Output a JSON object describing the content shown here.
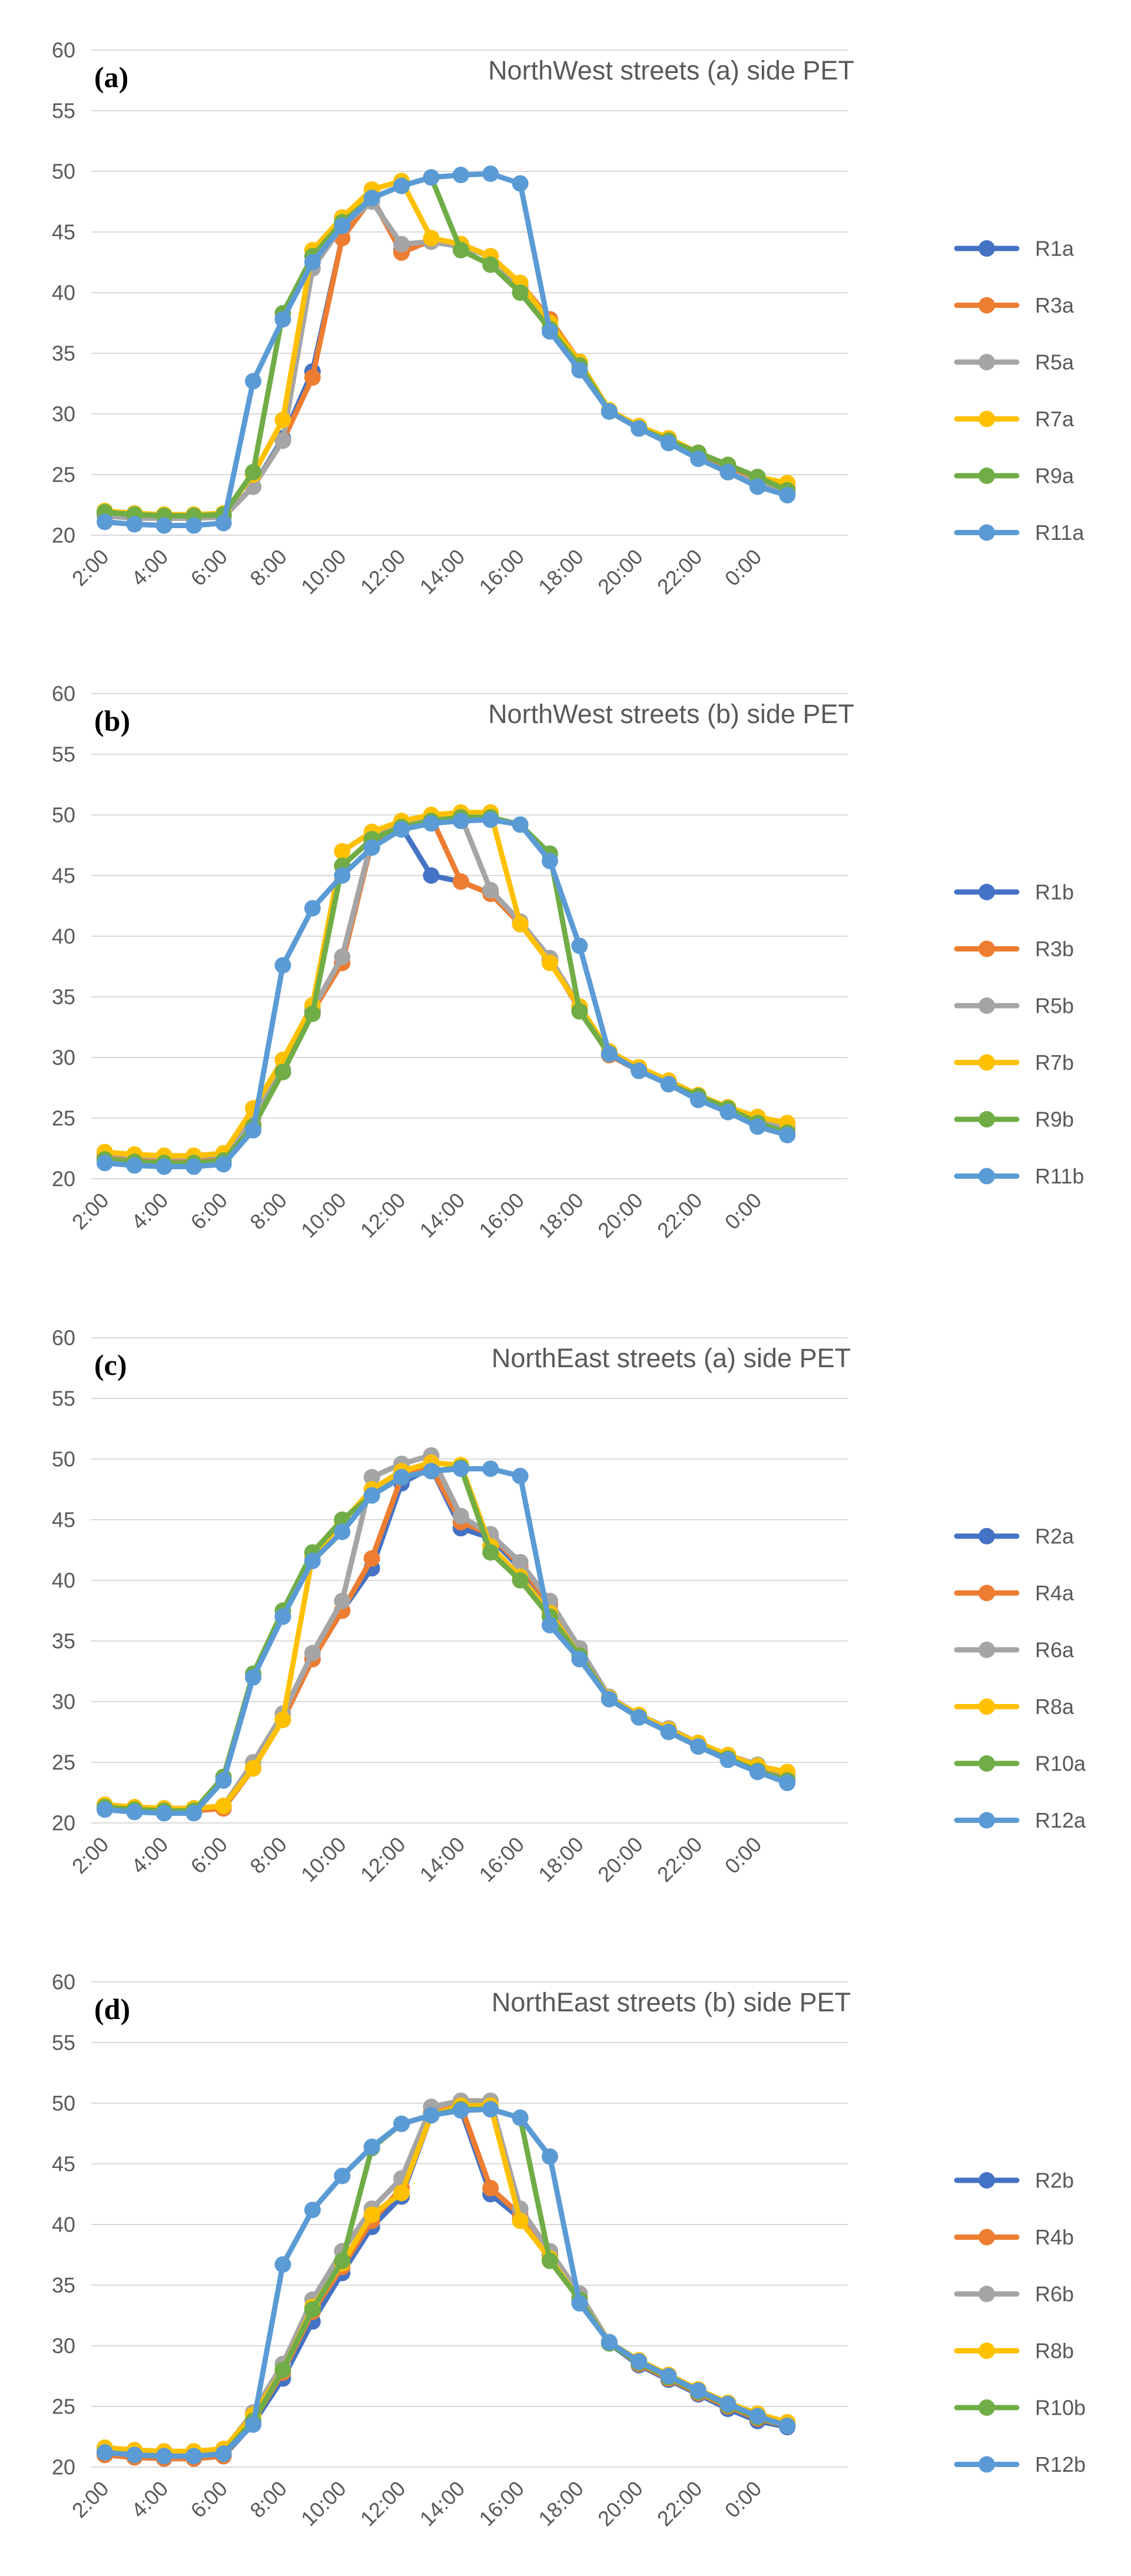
{
  "colors": {
    "text": "#595959",
    "gridline": "#D9D9D9",
    "series": [
      "#4472C4",
      "#ED7D31",
      "#A5A5A5",
      "#FFC000",
      "#70AD47",
      "#5B9BD5"
    ]
  },
  "chart_data": [
    {
      "type": "line",
      "panel_label": "(a)",
      "title": "NorthWest streets (a) side PET",
      "xlabel": "",
      "ylabel": "",
      "ylim": [
        20,
        60
      ],
      "yticks": [
        "20",
        "25",
        "30",
        "35",
        "40",
        "45",
        "50",
        "55",
        "60"
      ],
      "grid": true,
      "legend_position": "right",
      "categories": [
        "2:00",
        "3:00",
        "4:00",
        "5:00",
        "6:00",
        "7:00",
        "8:00",
        "9:00",
        "10:00",
        "11:00",
        "12:00",
        "13:00",
        "14:00",
        "15:00",
        "16:00",
        "17:00",
        "18:00",
        "19:00",
        "20:00",
        "21:00",
        "22:00",
        "23:00",
        "0:00",
        "1:00"
      ],
      "xtick_labels": [
        "2:00",
        "4:00",
        "6:00",
        "8:00",
        "10:00",
        "12:00",
        "14:00",
        "16:00",
        "18:00",
        "20:00",
        "22:00",
        "0:00"
      ],
      "series": [
        {
          "name": "R1a",
          "values": [
            21.8,
            21.6,
            21.5,
            21.5,
            21.6,
            24.0,
            28.0,
            33.5,
            44.5,
            47.8,
            43.5,
            44.2,
            43.8,
            43.0,
            40.5,
            37.8,
            34.2,
            30.2,
            28.8,
            27.8,
            26.6,
            25.5,
            24.5,
            23.8
          ]
        },
        {
          "name": "R3a",
          "values": [
            21.7,
            21.5,
            21.4,
            21.4,
            21.5,
            24.0,
            27.8,
            33.0,
            44.5,
            47.8,
            43.3,
            44.3,
            44.0,
            43.0,
            40.8,
            37.8,
            34.3,
            30.3,
            28.9,
            27.9,
            26.7,
            25.6,
            24.6,
            23.9
          ]
        },
        {
          "name": "R5a",
          "values": [
            21.6,
            21.4,
            21.4,
            21.4,
            21.5,
            24.0,
            27.8,
            42.0,
            45.5,
            47.5,
            44.0,
            44.2,
            43.8,
            43.0,
            40.5,
            37.5,
            34.2,
            30.2,
            28.8,
            27.7,
            26.3,
            25.2,
            24.3,
            23.4
          ]
        },
        {
          "name": "R7a",
          "values": [
            22.0,
            21.8,
            21.7,
            21.7,
            21.8,
            25.0,
            29.5,
            43.5,
            46.2,
            48.5,
            49.2,
            44.5,
            44.0,
            43.0,
            40.8,
            37.5,
            34.3,
            30.3,
            29.0,
            28.0,
            26.8,
            25.8,
            24.8,
            24.3
          ]
        },
        {
          "name": "R9a",
          "values": [
            21.9,
            21.7,
            21.6,
            21.6,
            21.7,
            25.2,
            38.3,
            43.0,
            45.8,
            47.8,
            48.8,
            49.5,
            43.5,
            42.3,
            40.0,
            37.0,
            34.0,
            30.2,
            28.8,
            27.8,
            26.8,
            25.8,
            24.8,
            23.7
          ]
        },
        {
          "name": "R11a",
          "values": [
            21.1,
            20.9,
            20.8,
            20.8,
            21.0,
            32.7,
            37.8,
            42.5,
            45.5,
            47.8,
            48.8,
            49.5,
            49.7,
            49.8,
            49.0,
            36.8,
            33.6,
            30.2,
            28.8,
            27.6,
            26.3,
            25.2,
            24.0,
            23.3
          ]
        }
      ]
    },
    {
      "type": "line",
      "panel_label": "(b)",
      "title": "NorthWest streets (b) side PET",
      "xlabel": "",
      "ylabel": "",
      "ylim": [
        20,
        60
      ],
      "yticks": [
        "20",
        "25",
        "30",
        "35",
        "40",
        "45",
        "50",
        "55",
        "60"
      ],
      "grid": true,
      "legend_position": "right",
      "categories": [
        "2:00",
        "3:00",
        "4:00",
        "5:00",
        "6:00",
        "7:00",
        "8:00",
        "9:00",
        "10:00",
        "11:00",
        "12:00",
        "13:00",
        "14:00",
        "15:00",
        "16:00",
        "17:00",
        "18:00",
        "19:00",
        "20:00",
        "21:00",
        "22:00",
        "23:00",
        "0:00",
        "1:00"
      ],
      "xtick_labels": [
        "2:00",
        "4:00",
        "6:00",
        "8:00",
        "10:00",
        "12:00",
        "14:00",
        "16:00",
        "18:00",
        "20:00",
        "22:00",
        "0:00"
      ],
      "series": [
        {
          "name": "R1b",
          "values": [
            21.9,
            21.7,
            21.6,
            21.6,
            21.8,
            24.5,
            28.8,
            33.8,
            37.8,
            47.8,
            49.0,
            45.0,
            44.5,
            43.5,
            41.0,
            38.0,
            34.0,
            30.2,
            28.9,
            27.8,
            26.6,
            25.6,
            24.8,
            24.2
          ]
        },
        {
          "name": "R3b",
          "values": [
            21.8,
            21.6,
            21.5,
            21.5,
            21.7,
            24.5,
            28.8,
            33.8,
            37.8,
            47.8,
            49.2,
            49.8,
            44.5,
            43.5,
            41.0,
            38.0,
            34.0,
            30.2,
            28.9,
            27.8,
            26.6,
            25.6,
            24.8,
            24.2
          ]
        },
        {
          "name": "R5b",
          "values": [
            22.1,
            21.9,
            21.8,
            21.8,
            22.0,
            25.0,
            29.0,
            34.0,
            38.3,
            48.0,
            49.3,
            49.9,
            49.9,
            43.8,
            41.2,
            38.2,
            34.2,
            30.3,
            29.0,
            27.9,
            26.7,
            25.7,
            24.9,
            24.3
          ]
        },
        {
          "name": "R7b",
          "values": [
            22.2,
            22.0,
            21.9,
            21.9,
            22.1,
            25.8,
            29.8,
            34.3,
            47.0,
            48.6,
            49.5,
            50.0,
            50.2,
            50.2,
            41.0,
            37.8,
            34.2,
            30.5,
            29.2,
            28.1,
            26.9,
            25.9,
            25.1,
            24.6
          ]
        },
        {
          "name": "R9b",
          "values": [
            21.6,
            21.4,
            21.3,
            21.3,
            21.5,
            24.3,
            28.8,
            33.6,
            45.8,
            48.0,
            49.0,
            49.5,
            49.8,
            49.8,
            49.2,
            46.8,
            33.8,
            30.3,
            28.9,
            27.8,
            26.8,
            25.8,
            24.6,
            23.8
          ]
        },
        {
          "name": "R11b",
          "values": [
            21.3,
            21.1,
            21.0,
            21.0,
            21.2,
            24.0,
            37.6,
            42.3,
            45.0,
            47.3,
            48.8,
            49.3,
            49.5,
            49.6,
            49.2,
            46.2,
            39.2,
            30.3,
            28.9,
            27.8,
            26.5,
            25.5,
            24.3,
            23.6
          ]
        }
      ]
    },
    {
      "type": "line",
      "panel_label": "(c)",
      "title": "NorthEast  streets (a) side PET",
      "xlabel": "",
      "ylabel": "",
      "ylim": [
        20,
        60
      ],
      "yticks": [
        "20",
        "25",
        "30",
        "35",
        "40",
        "45",
        "50",
        "55",
        "60"
      ],
      "grid": true,
      "legend_position": "right",
      "categories": [
        "2:00",
        "3:00",
        "4:00",
        "5:00",
        "6:00",
        "7:00",
        "8:00",
        "9:00",
        "10:00",
        "11:00",
        "12:00",
        "13:00",
        "14:00",
        "15:00",
        "16:00",
        "17:00",
        "18:00",
        "19:00",
        "20:00",
        "21:00",
        "22:00",
        "23:00",
        "0:00",
        "1:00"
      ],
      "xtick_labels": [
        "2:00",
        "4:00",
        "6:00",
        "8:00",
        "10:00",
        "12:00",
        "14:00",
        "16:00",
        "18:00",
        "20:00",
        "22:00",
        "0:00"
      ],
      "series": [
        {
          "name": "R2a",
          "values": [
            21.3,
            21.1,
            21.0,
            21.0,
            21.2,
            24.5,
            28.5,
            33.5,
            37.5,
            41.0,
            48.0,
            49.3,
            44.3,
            43.5,
            41.0,
            38.0,
            34.0,
            30.3,
            28.8,
            27.6,
            26.5,
            25.4,
            24.4,
            23.6
          ]
        },
        {
          "name": "R4a",
          "values": [
            21.3,
            21.1,
            21.0,
            21.0,
            21.2,
            24.5,
            28.5,
            33.5,
            37.5,
            41.8,
            48.5,
            49.3,
            44.8,
            43.8,
            41.2,
            38.0,
            34.2,
            30.3,
            28.8,
            27.6,
            26.5,
            25.4,
            24.4,
            23.6
          ]
        },
        {
          "name": "R6a",
          "values": [
            21.5,
            21.3,
            21.2,
            21.2,
            21.4,
            25.0,
            29.0,
            34.0,
            38.3,
            48.5,
            49.6,
            50.3,
            45.3,
            43.8,
            41.5,
            38.3,
            34.4,
            30.4,
            28.9,
            27.8,
            26.6,
            25.6,
            24.8,
            24.0
          ]
        },
        {
          "name": "R8a",
          "values": [
            21.5,
            21.3,
            21.2,
            21.2,
            21.4,
            24.5,
            28.5,
            42.0,
            44.8,
            47.5,
            49.0,
            49.7,
            49.5,
            42.8,
            40.3,
            37.3,
            33.8,
            30.3,
            28.9,
            27.7,
            26.6,
            25.6,
            24.7,
            24.2
          ]
        },
        {
          "name": "R10a",
          "values": [
            21.3,
            21.1,
            21.0,
            21.0,
            23.8,
            32.3,
            37.5,
            42.3,
            45.0,
            47.0,
            48.5,
            49.0,
            49.3,
            42.3,
            40.0,
            37.0,
            33.8,
            30.2,
            28.7,
            27.5,
            26.3,
            25.3,
            24.3,
            23.5
          ]
        },
        {
          "name": "R12a",
          "values": [
            21.1,
            20.9,
            20.8,
            20.8,
            23.5,
            32.0,
            37.0,
            41.6,
            44.0,
            47.0,
            48.5,
            49.0,
            49.2,
            49.2,
            48.6,
            36.3,
            33.5,
            30.2,
            28.7,
            27.5,
            26.3,
            25.2,
            24.2,
            23.3
          ]
        }
      ]
    },
    {
      "type": "line",
      "panel_label": "(d)",
      "title": "NorthEast  streets (b) side PET",
      "xlabel": "",
      "ylabel": "",
      "ylim": [
        20,
        60
      ],
      "yticks": [
        "20",
        "25",
        "30",
        "35",
        "40",
        "45",
        "50",
        "55",
        "60"
      ],
      "grid": true,
      "legend_position": "right",
      "categories": [
        "2:00",
        "3:00",
        "4:00",
        "5:00",
        "6:00",
        "7:00",
        "8:00",
        "9:00",
        "10:00",
        "11:00",
        "12:00",
        "13:00",
        "14:00",
        "15:00",
        "16:00",
        "17:00",
        "18:00",
        "19:00",
        "20:00",
        "21:00",
        "22:00",
        "23:00",
        "0:00",
        "1:00"
      ],
      "xtick_labels": [
        "2:00",
        "4:00",
        "6:00",
        "8:00",
        "10:00",
        "12:00",
        "14:00",
        "16:00",
        "18:00",
        "20:00",
        "22:00",
        "0:00"
      ],
      "series": [
        {
          "name": "R2b",
          "values": [
            21.0,
            20.8,
            20.7,
            20.7,
            20.9,
            23.6,
            27.3,
            32.0,
            36.0,
            39.8,
            42.3,
            49.0,
            49.5,
            42.5,
            40.5,
            37.5,
            33.8,
            30.2,
            28.4,
            27.2,
            26.0,
            24.8,
            23.8,
            23.3
          ]
        },
        {
          "name": "R4b",
          "values": [
            21.0,
            20.8,
            20.7,
            20.7,
            20.9,
            23.8,
            27.8,
            32.8,
            36.5,
            40.3,
            43.0,
            49.2,
            49.8,
            43.0,
            40.8,
            37.8,
            34.0,
            30.3,
            28.5,
            27.3,
            26.1,
            25.0,
            24.0,
            23.4
          ]
        },
        {
          "name": "R6b",
          "values": [
            21.5,
            21.3,
            21.2,
            21.2,
            21.4,
            24.5,
            28.5,
            33.8,
            37.8,
            41.3,
            43.8,
            49.7,
            50.2,
            50.2,
            41.3,
            37.8,
            34.3,
            30.3,
            28.7,
            27.5,
            26.3,
            25.2,
            24.2,
            23.6
          ]
        },
        {
          "name": "R8b",
          "values": [
            21.6,
            21.4,
            21.3,
            21.3,
            21.5,
            24.3,
            28.0,
            33.2,
            36.8,
            40.8,
            42.6,
            49.0,
            49.8,
            49.8,
            40.3,
            37.2,
            33.8,
            30.3,
            28.8,
            27.6,
            26.4,
            25.3,
            24.4,
            23.7
          ]
        },
        {
          "name": "R10b",
          "values": [
            21.2,
            21.0,
            20.9,
            20.9,
            21.1,
            23.8,
            28.0,
            33.0,
            37.0,
            46.3,
            48.3,
            49.0,
            49.5,
            49.5,
            48.8,
            37.0,
            33.8,
            30.2,
            28.6,
            27.4,
            26.2,
            25.1,
            24.1,
            23.4
          ]
        },
        {
          "name": "R12b",
          "values": [
            21.2,
            21.0,
            20.9,
            20.9,
            21.1,
            23.5,
            36.7,
            41.2,
            44.0,
            46.4,
            48.3,
            49.0,
            49.4,
            49.5,
            48.8,
            45.6,
            33.5,
            30.3,
            28.7,
            27.5,
            26.3,
            25.2,
            24.2,
            23.4
          ]
        }
      ]
    }
  ]
}
